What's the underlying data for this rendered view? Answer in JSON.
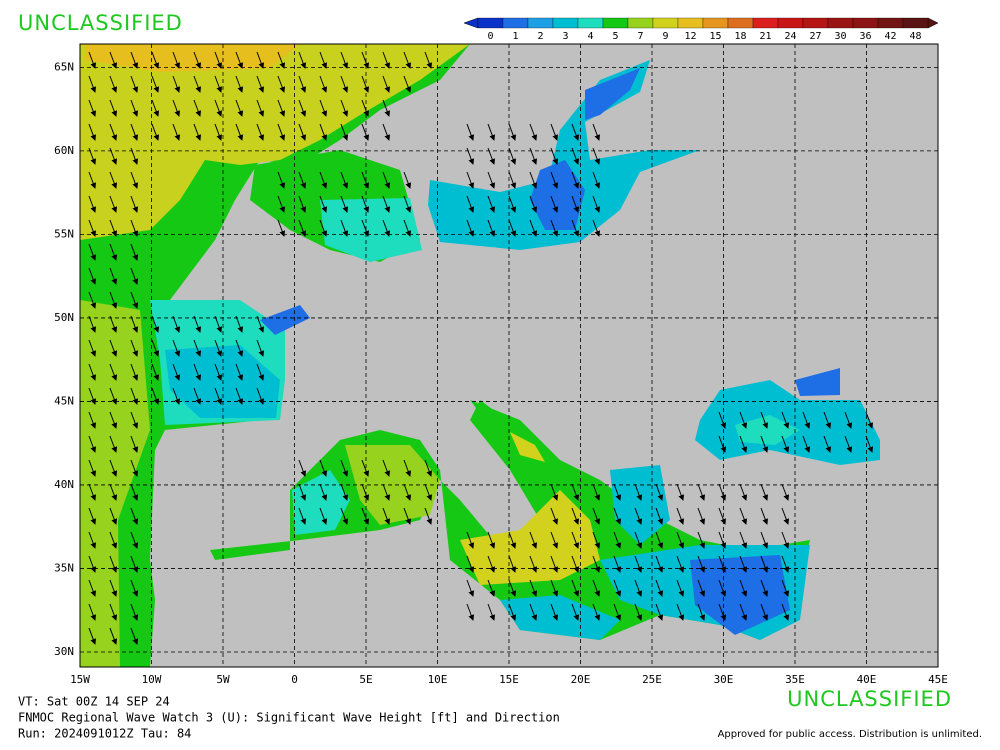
{
  "header": {
    "classification_top": "UNCLASSIFIED"
  },
  "colorbar": {
    "ticks": [
      0,
      1,
      2,
      3,
      4,
      5,
      7,
      9,
      12,
      15,
      18,
      21,
      24,
      27,
      30,
      36,
      42,
      48
    ],
    "colors": [
      "#0a32c8",
      "#1e6ee6",
      "#1ea0e6",
      "#00bed2",
      "#1edcbe",
      "#14c814",
      "#96d21e",
      "#d2d21e",
      "#e6be1e",
      "#e6961e",
      "#dc6e1e",
      "#dc1e1e",
      "#c81414",
      "#b41414",
      "#9b1414",
      "#8c1414",
      "#731414",
      "#5a1414"
    ]
  },
  "map": {
    "xlim": [
      -15,
      45
    ],
    "ylim": [
      29.1,
      66.4
    ],
    "grid": true,
    "xticks": [
      {
        "value": -15,
        "label": "15W"
      },
      {
        "value": -10,
        "label": "10W"
      },
      {
        "value": -5,
        "label": "5W"
      },
      {
        "value": 0,
        "label": "0"
      },
      {
        "value": 5,
        "label": "5E"
      },
      {
        "value": 10,
        "label": "10E"
      },
      {
        "value": 15,
        "label": "15E"
      },
      {
        "value": 20,
        "label": "20E"
      },
      {
        "value": 25,
        "label": "25E"
      },
      {
        "value": 30,
        "label": "30E"
      },
      {
        "value": 35,
        "label": "35E"
      },
      {
        "value": 40,
        "label": "40E"
      },
      {
        "value": 45,
        "label": "45E"
      }
    ],
    "yticks": [
      {
        "value": 30,
        "label": "30N"
      },
      {
        "value": 35,
        "label": "35N"
      },
      {
        "value": 40,
        "label": "40N"
      },
      {
        "value": 45,
        "label": "45N"
      },
      {
        "value": 50,
        "label": "50N"
      },
      {
        "value": 55,
        "label": "55N"
      },
      {
        "value": 60,
        "label": "60N"
      },
      {
        "value": 65,
        "label": "65N"
      }
    ]
  },
  "footer": {
    "valid_time": "VT: Sat 00Z 14 SEP 24",
    "description": "FNMOC Regional Wave Watch 3 (U): Significant Wave Height [ft] and Direction",
    "run": "Run: 2024091012Z Tau: 84",
    "classification_bottom": "UNCLASSIFIED",
    "release": "Approved for public access. Distribution is unlimited."
  }
}
